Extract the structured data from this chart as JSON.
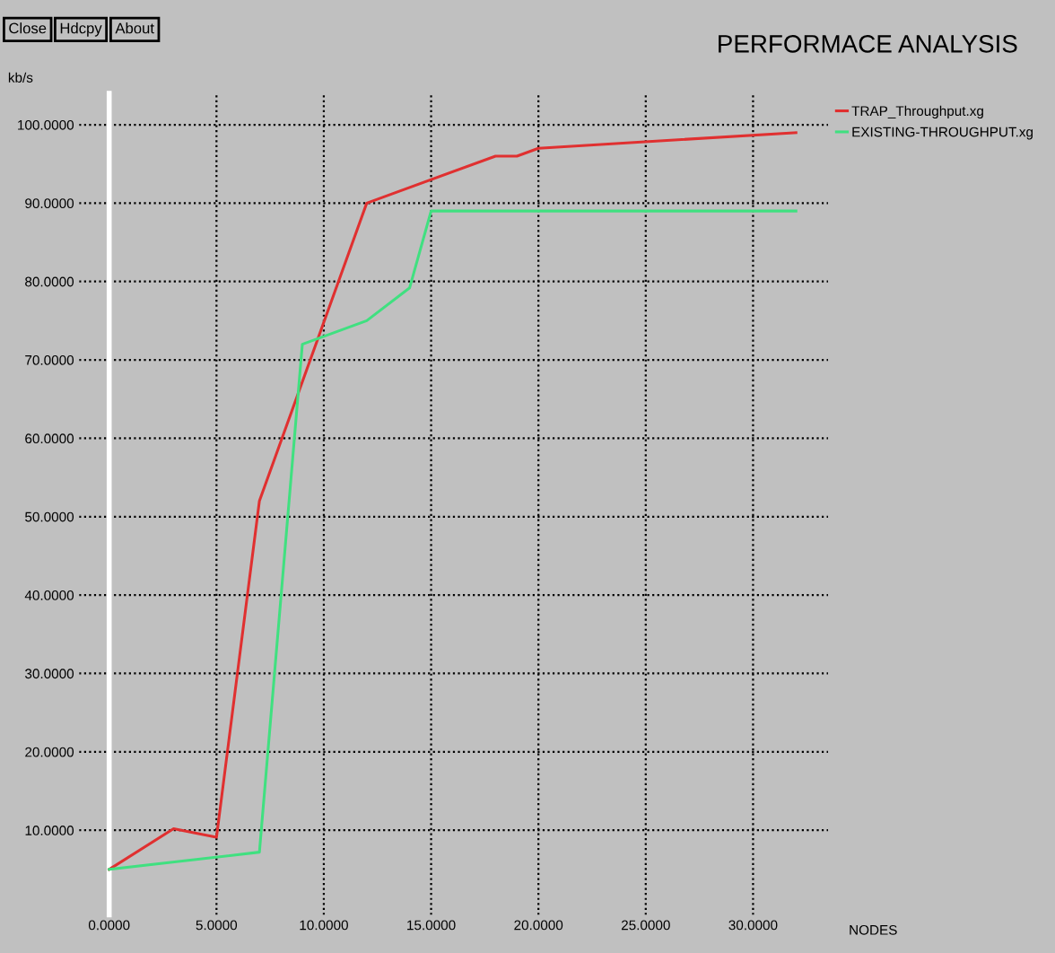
{
  "chart_data": {
    "type": "line",
    "title": "PERFORMACE ANALYSIS",
    "xlabel": "NODES",
    "ylabel": "kb/s",
    "annotations": [
      "Close",
      "Hdcpy",
      "About"
    ],
    "series": [
      {
        "name": "TRAP_Throughput.xg",
        "color": "#e03030",
        "x": [
          0,
          3,
          5,
          7,
          12,
          18,
          19,
          20,
          32
        ],
        "values": [
          5,
          10.2,
          9.1,
          52,
          90,
          96,
          96,
          97,
          99
        ]
      },
      {
        "name": "EXISTING-THROUGHPUT.xg",
        "color": "#40e080",
        "x": [
          0,
          7,
          9,
          12,
          14,
          15,
          32
        ],
        "values": [
          5,
          7.2,
          72,
          75,
          79.2,
          89,
          89
        ]
      }
    ],
    "xlim": [
      -1.4,
      33.5
    ],
    "ylim": [
      -0.8,
      104
    ],
    "xticks": [
      {
        "value": 0,
        "label": "0.0000"
      },
      {
        "value": 5,
        "label": "5.0000"
      },
      {
        "value": 10,
        "label": "10.0000"
      },
      {
        "value": 15,
        "label": "15.0000"
      },
      {
        "value": 20,
        "label": "20.0000"
      },
      {
        "value": 25,
        "label": "25.0000"
      },
      {
        "value": 30,
        "label": "30.0000"
      }
    ],
    "yticks": [
      {
        "value": 10,
        "label": "10.0000"
      },
      {
        "value": 20,
        "label": "20.0000"
      },
      {
        "value": 30,
        "label": "30.0000"
      },
      {
        "value": 40,
        "label": "40.0000"
      },
      {
        "value": 50,
        "label": "50.0000"
      },
      {
        "value": 60,
        "label": "60.0000"
      },
      {
        "value": 70,
        "label": "70.0000"
      },
      {
        "value": 80,
        "label": "80.0000"
      },
      {
        "value": 90,
        "label": "90.0000"
      },
      {
        "value": 100,
        "label": "100.0000"
      }
    ],
    "grid": true,
    "legend": "right",
    "line_style": "solid",
    "marker": "none"
  }
}
